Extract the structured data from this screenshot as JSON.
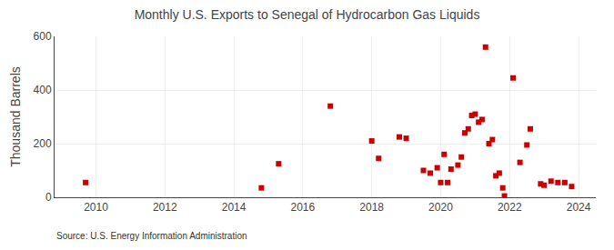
{
  "chart_data": {
    "type": "scatter",
    "title": "Monthly U.S. Exports to Senegal of Hydrocarbon Gas Liquids",
    "ylabel": "Thousand Barrels",
    "annotations": [
      "Source: U.S. Energy Information Administration"
    ],
    "x": [
      2009.7,
      2015.3,
      2014.8,
      2016.8,
      2018.0,
      2018.2,
      2018.8,
      2019.0,
      2019.5,
      2019.7,
      2019.9,
      2020.1,
      2020.0,
      2020.2,
      2020.3,
      2020.5,
      2020.6,
      2020.7,
      2020.8,
      2020.9,
      2021.0,
      2021.1,
      2021.2,
      2021.3,
      2021.4,
      2021.5,
      2021.6,
      2021.7,
      2021.8,
      2021.85,
      2022.1,
      2022.3,
      2022.5,
      2022.6,
      2022.9,
      2023.0,
      2023.2,
      2023.4,
      2023.6,
      2023.8
    ],
    "values": [
      55,
      125,
      35,
      340,
      210,
      145,
      225,
      220,
      100,
      90,
      110,
      160,
      55,
      55,
      105,
      120,
      150,
      240,
      255,
      305,
      310,
      280,
      290,
      560,
      200,
      215,
      80,
      90,
      35,
      5,
      445,
      130,
      195,
      255,
      50,
      45,
      60,
      55,
      55,
      40
    ],
    "color": "#cc0000",
    "marker": "square",
    "xlim": [
      2008.8,
      2024.5
    ],
    "ylim": [
      0,
      600
    ],
    "xticks": [
      2010,
      2012,
      2014,
      2016,
      2018,
      2020,
      2022,
      2024
    ],
    "yticks": [
      0,
      200,
      400,
      600
    ],
    "grid": true
  }
}
